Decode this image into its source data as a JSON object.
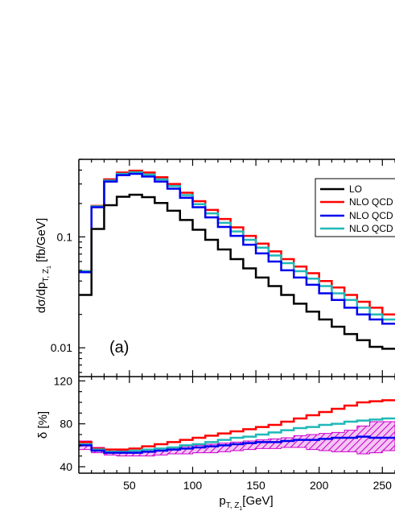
{
  "chart_data": [
    {
      "type": "line",
      "step": true,
      "panel": "top",
      "ylabel": "dσ/dp",
      "ylabel_sub": "T, Z",
      "ylabel_sub2": "1",
      "ylabel_unit": " [fb/GeV]",
      "yscale": "log",
      "xlim": [
        10,
        260
      ],
      "ylim": [
        0.0055,
        0.5
      ],
      "y_ticks": [
        0.01,
        0.1
      ],
      "y_tick_labels": [
        "0.01",
        "0.1"
      ],
      "annotation": "(a)",
      "legend_position": "top-right",
      "x_edges": [
        10,
        20,
        30,
        40,
        50,
        60,
        70,
        80,
        90,
        100,
        110,
        120,
        130,
        140,
        150,
        160,
        170,
        180,
        190,
        200,
        210,
        220,
        230,
        240,
        250,
        260
      ],
      "series": [
        {
          "name": "LO",
          "color": "#000000",
          "values": [
            0.03,
            0.118,
            0.193,
            0.23,
            0.24,
            0.228,
            0.202,
            0.172,
            0.142,
            0.116,
            0.094,
            0.077,
            0.063,
            0.052,
            0.043,
            0.036,
            0.03,
            0.025,
            0.0212,
            0.018,
            0.0155,
            0.0133,
            0.0117,
            0.0102,
            0.0098
          ]
        },
        {
          "name": "NLO QCD",
          "color": "#ff0000",
          "values": [
            0.049,
            0.19,
            0.33,
            0.38,
            0.395,
            0.38,
            0.345,
            0.3,
            0.25,
            0.21,
            0.175,
            0.145,
            0.122,
            0.102,
            0.087,
            0.074,
            0.063,
            0.054,
            0.047,
            0.04,
            0.035,
            0.03,
            0.026,
            0.023,
            0.02
          ]
        },
        {
          "name": "NLO QCD",
          "color": "#0000ee",
          "values": [
            0.048,
            0.185,
            0.315,
            0.36,
            0.37,
            0.35,
            0.315,
            0.272,
            0.225,
            0.185,
            0.15,
            0.123,
            0.102,
            0.085,
            0.071,
            0.06,
            0.05,
            0.043,
            0.037,
            0.031,
            0.027,
            0.023,
            0.02,
            0.018,
            0.0165
          ]
        },
        {
          "name": "NLO QCD",
          "color": "#20b8b8",
          "values": [
            0.049,
            0.188,
            0.322,
            0.37,
            0.382,
            0.365,
            0.33,
            0.287,
            0.238,
            0.197,
            0.163,
            0.134,
            0.112,
            0.094,
            0.08,
            0.068,
            0.058,
            0.049,
            0.042,
            0.036,
            0.031,
            0.027,
            0.023,
            0.02,
            0.018
          ]
        }
      ]
    },
    {
      "type": "line",
      "step": true,
      "panel": "bottom",
      "ylabel": "δ [%]",
      "xlabel": "p",
      "xlabel_sub": "T, Z",
      "xlabel_sub2": "1",
      "xlabel_unit": "[GeV]",
      "xlim": [
        10,
        260
      ],
      "ylim": [
        34,
        124
      ],
      "x_ticks": [
        50,
        100,
        150,
        200,
        250
      ],
      "x_tick_labels": [
        "50",
        "100",
        "150",
        "200",
        "250"
      ],
      "y_ticks": [
        40,
        80,
        120
      ],
      "y_tick_labels": [
        "40",
        "80",
        "120"
      ],
      "x_edges": [
        10,
        20,
        30,
        40,
        50,
        60,
        70,
        80,
        90,
        100,
        110,
        120,
        130,
        140,
        150,
        160,
        170,
        180,
        190,
        200,
        210,
        220,
        230,
        240,
        250,
        260
      ],
      "band": {
        "color": "#cc00cc",
        "lower": [
          56,
          53,
          51,
          50,
          50,
          50,
          51,
          52,
          52,
          53,
          53,
          54,
          55,
          56,
          57,
          57,
          58,
          58,
          56,
          55,
          54,
          54,
          52,
          53,
          55
        ],
        "upper": [
          64,
          58,
          56,
          55,
          55,
          56,
          57,
          58,
          59,
          60,
          61,
          62,
          63,
          64,
          65,
          66,
          67,
          69,
          70,
          71,
          72,
          74,
          78,
          82,
          82
        ]
      },
      "series": [
        {
          "color": "#ff0000",
          "values": [
            63,
            57,
            56,
            56,
            57,
            59,
            61,
            63,
            65,
            67,
            69,
            71,
            73,
            75,
            77,
            79,
            82,
            85,
            88,
            91,
            94,
            97,
            100,
            101,
            102
          ]
        },
        {
          "color": "#0000ee",
          "values": [
            60,
            55,
            53,
            53,
            53,
            54,
            55,
            56,
            57,
            58,
            59,
            60,
            61,
            62,
            63,
            63,
            64,
            65,
            65,
            66,
            67,
            67,
            68,
            67,
            67
          ]
        },
        {
          "color": "#20b8b8",
          "values": [
            61,
            56,
            54,
            54,
            55,
            56,
            57,
            58,
            60,
            61,
            63,
            65,
            67,
            68,
            70,
            72,
            74,
            76,
            77,
            79,
            80,
            82,
            83,
            84,
            85
          ]
        }
      ]
    }
  ]
}
